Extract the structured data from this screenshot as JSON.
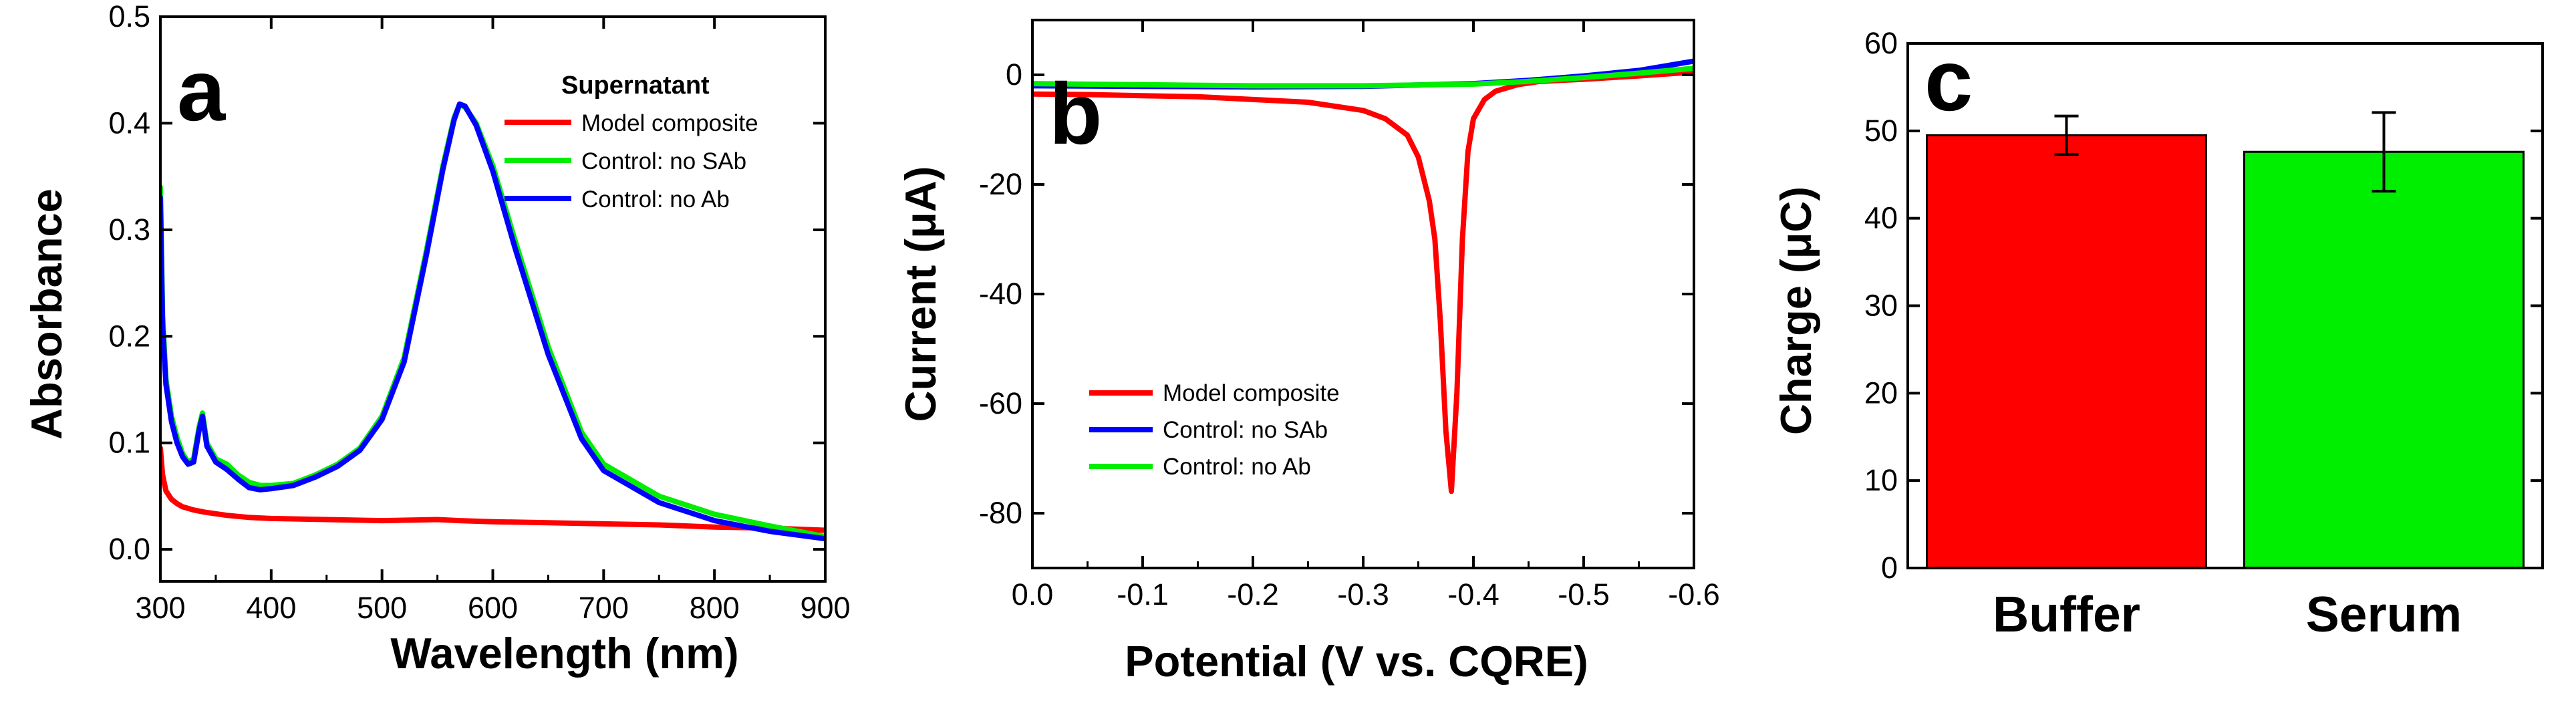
{
  "colors": {
    "red": "#ff0000",
    "green": "#00ee00",
    "blue": "#0000ff",
    "axis": "#000000",
    "bar_edge": "#000000"
  },
  "chart_data": [
    {
      "panel": "a",
      "type": "line",
      "xlabel": "Wavelength (nm)",
      "ylabel": "Absorbance",
      "xlim": [
        300,
        900
      ],
      "ylim": [
        -0.03,
        0.5
      ],
      "xticks": [
        300,
        400,
        500,
        600,
        700,
        800,
        900
      ],
      "yticks": [
        0.0,
        0.1,
        0.2,
        0.3,
        0.4,
        0.5
      ],
      "ytick_labels": [
        "0.0",
        "0.1",
        "0.2",
        "0.3",
        "0.4",
        "0.5"
      ],
      "legend_title": "Supernatant",
      "legend_position": "top-right",
      "series": [
        {
          "name": "Model composite",
          "color": "red",
          "x": [
            300,
            302,
            305,
            310,
            315,
            320,
            330,
            340,
            360,
            380,
            400,
            450,
            500,
            550,
            570,
            600,
            650,
            700,
            750,
            800,
            850,
            900
          ],
          "y": [
            0.095,
            0.07,
            0.055,
            0.047,
            0.043,
            0.04,
            0.037,
            0.035,
            0.032,
            0.03,
            0.029,
            0.028,
            0.027,
            0.028,
            0.027,
            0.026,
            0.025,
            0.024,
            0.023,
            0.021,
            0.02,
            0.018
          ]
        },
        {
          "name": "Control: no SAb",
          "color": "green",
          "x": [
            300,
            302,
            305,
            310,
            315,
            320,
            325,
            330,
            335,
            338,
            342,
            350,
            360,
            370,
            380,
            390,
            400,
            420,
            440,
            460,
            480,
            500,
            520,
            540,
            555,
            565,
            570,
            575,
            585,
            600,
            620,
            650,
            680,
            700,
            750,
            800,
            850,
            900
          ],
          "y": [
            0.34,
            0.22,
            0.16,
            0.125,
            0.105,
            0.09,
            0.082,
            0.085,
            0.115,
            0.128,
            0.1,
            0.085,
            0.08,
            0.07,
            0.063,
            0.06,
            0.06,
            0.062,
            0.07,
            0.08,
            0.095,
            0.125,
            0.18,
            0.28,
            0.36,
            0.405,
            0.418,
            0.415,
            0.4,
            0.36,
            0.29,
            0.19,
            0.11,
            0.08,
            0.05,
            0.033,
            0.022,
            0.012
          ]
        },
        {
          "name": "Control: no Ab",
          "color": "blue",
          "x": [
            300,
            302,
            305,
            310,
            315,
            320,
            325,
            330,
            335,
            338,
            342,
            350,
            360,
            370,
            380,
            390,
            400,
            420,
            440,
            460,
            480,
            500,
            520,
            540,
            555,
            565,
            570,
            575,
            585,
            600,
            620,
            650,
            680,
            700,
            750,
            800,
            850,
            900
          ],
          "y": [
            0.33,
            0.21,
            0.155,
            0.12,
            0.1,
            0.087,
            0.08,
            0.082,
            0.112,
            0.125,
            0.097,
            0.082,
            0.075,
            0.066,
            0.058,
            0.056,
            0.057,
            0.06,
            0.068,
            0.078,
            0.093,
            0.122,
            0.176,
            0.276,
            0.357,
            0.403,
            0.418,
            0.416,
            0.398,
            0.355,
            0.283,
            0.183,
            0.104,
            0.074,
            0.044,
            0.027,
            0.017,
            0.01
          ]
        }
      ]
    },
    {
      "panel": "b",
      "type": "line",
      "xlabel": "Potential (V vs. CQRE)",
      "ylabel": "Current (μA)",
      "xlim": [
        0.0,
        -0.6
      ],
      "ylim": [
        -90,
        10
      ],
      "xticks": [
        0.0,
        -0.1,
        -0.2,
        -0.3,
        -0.4,
        -0.5,
        -0.6
      ],
      "xtick_labels": [
        "0.0",
        "-0.1",
        "-0.2",
        "-0.3",
        "-0.4",
        "-0.5",
        "-0.6"
      ],
      "yticks": [
        0,
        -20,
        -40,
        -60,
        -80
      ],
      "ytick_labels": [
        "0",
        "-20",
        "-40",
        "-60",
        "-80"
      ],
      "legend_position": "lower-left",
      "series": [
        {
          "name": "Model composite",
          "color": "red",
          "x": [
            0.0,
            -0.05,
            -0.1,
            -0.15,
            -0.2,
            -0.25,
            -0.3,
            -0.32,
            -0.34,
            -0.35,
            -0.36,
            -0.365,
            -0.37,
            -0.375,
            -0.38,
            -0.385,
            -0.39,
            -0.395,
            -0.4,
            -0.41,
            -0.42,
            -0.44,
            -0.46,
            -0.5,
            -0.55,
            -0.6
          ],
          "y": [
            -3.5,
            -3.6,
            -3.8,
            -4.0,
            -4.5,
            -5.0,
            -6.5,
            -8.0,
            -11.0,
            -15.0,
            -23.0,
            -30.0,
            -45.0,
            -65.0,
            -76.0,
            -58.0,
            -30.0,
            -14.0,
            -8.0,
            -4.5,
            -3.0,
            -1.8,
            -1.2,
            -0.8,
            -0.2,
            0.5
          ]
        },
        {
          "name": "Control: no SAb",
          "color": "blue",
          "x": [
            0.0,
            -0.1,
            -0.2,
            -0.3,
            -0.4,
            -0.45,
            -0.5,
            -0.55,
            -0.6
          ],
          "y": [
            -2.0,
            -2.1,
            -2.2,
            -2.1,
            -1.6,
            -1.0,
            -0.2,
            0.8,
            2.5
          ]
        },
        {
          "name": "Control: no Ab",
          "color": "green",
          "x": [
            0.0,
            -0.1,
            -0.2,
            -0.3,
            -0.4,
            -0.45,
            -0.5,
            -0.55,
            -0.6
          ],
          "y": [
            -1.6,
            -1.8,
            -2.0,
            -2.0,
            -1.7,
            -1.2,
            -0.5,
            0.3,
            1.2
          ]
        }
      ]
    },
    {
      "panel": "c",
      "type": "bar",
      "xlabel": "",
      "ylabel": "Charge (μC)",
      "ylim": [
        0,
        60
      ],
      "yticks": [
        0,
        10,
        20,
        30,
        40,
        50,
        60
      ],
      "categories": [
        "Buffer",
        "Serum"
      ],
      "values": [
        49.5,
        47.6
      ],
      "errors": [
        2.2,
        4.5
      ],
      "bar_colors": [
        "red",
        "green"
      ]
    }
  ]
}
